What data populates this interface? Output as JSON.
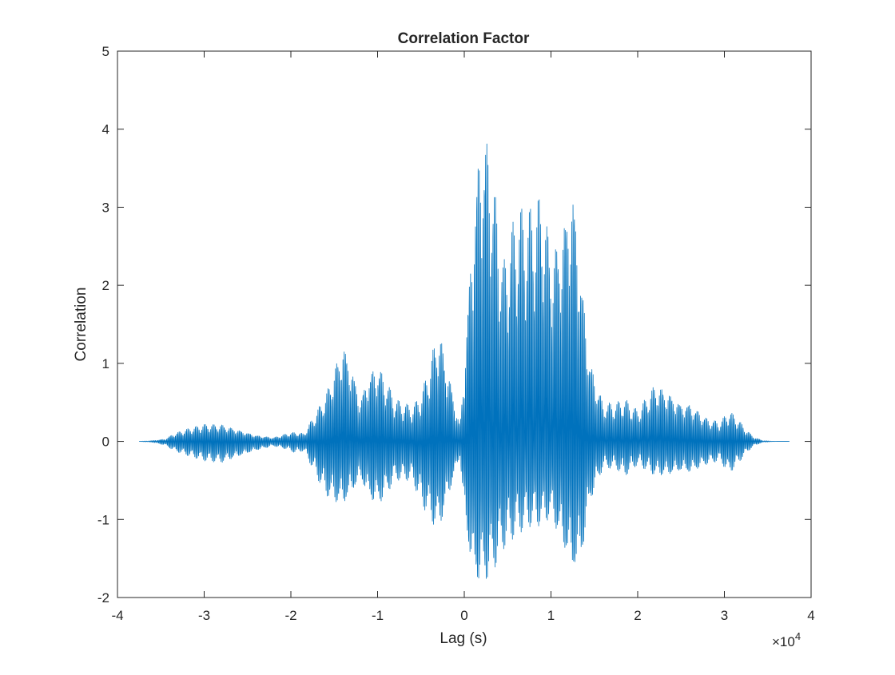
{
  "chart_data": {
    "type": "line",
    "title": "Correlation Factor",
    "xlabel": "Lag (s)",
    "ylabel": "Correlation",
    "x_exponent": {
      "prefix": "×10",
      "power": "4"
    },
    "xlim": [
      -4,
      4
    ],
    "ylim": [
      -2,
      5
    ],
    "x_ticks": [
      -4,
      -3,
      -2,
      -1,
      0,
      1,
      2,
      3,
      4
    ],
    "y_ticks": [
      -2,
      -1,
      0,
      1,
      2,
      3,
      4,
      5
    ],
    "x_tick_labels": [
      "-4",
      "-3",
      "-2",
      "-1",
      "0",
      "1",
      "2",
      "3",
      "4"
    ],
    "y_tick_labels": [
      "-2",
      "-1",
      "0",
      "1",
      "2",
      "3",
      "4",
      "5"
    ],
    "grid": false,
    "line_color": "#0072BD",
    "axis_color": "#262626",
    "series": [
      {
        "x": [
          -3.75,
          -3.6,
          -3.45,
          -3.35,
          -3.2,
          -3.0,
          -2.8,
          -2.6,
          -2.4,
          -2.2,
          -2.05,
          -1.95,
          -1.85,
          -1.75,
          -1.6,
          -1.5,
          -1.4,
          -1.3,
          -1.2,
          -1.1,
          -1.0,
          -0.9,
          -0.8,
          -0.6,
          -0.5,
          -0.4,
          -0.3,
          -0.2,
          -0.05,
          0.0,
          0.1,
          0.2,
          0.3,
          0.45,
          0.6,
          0.75,
          0.9,
          1.0,
          1.1,
          1.25,
          1.35,
          1.45,
          1.6,
          1.75,
          1.85,
          2.0,
          2.2,
          2.35,
          2.5,
          2.6,
          2.8,
          2.95,
          3.05,
          3.15,
          3.25,
          3.35,
          3.45,
          3.6,
          3.75
        ],
        "upper": [
          0.0,
          0.01,
          0.03,
          0.1,
          0.16,
          0.22,
          0.22,
          0.15,
          0.08,
          0.05,
          0.1,
          0.12,
          0.1,
          0.3,
          0.6,
          0.95,
          1.3,
          1.0,
          0.55,
          0.9,
          1.0,
          0.8,
          0.55,
          0.45,
          0.6,
          1.0,
          1.5,
          1.0,
          0.2,
          1.0,
          3.0,
          4.2,
          3.8,
          2.3,
          3.0,
          3.0,
          3.25,
          2.5,
          2.7,
          3.45,
          2.2,
          1.05,
          0.5,
          0.5,
          0.55,
          0.4,
          0.75,
          0.65,
          0.5,
          0.5,
          0.3,
          0.25,
          0.4,
          0.3,
          0.15,
          0.05,
          0.01,
          0.0,
          0.0
        ],
        "lower": [
          0.0,
          -0.01,
          -0.05,
          -0.12,
          -0.18,
          -0.25,
          -0.28,
          -0.2,
          -0.12,
          -0.06,
          -0.1,
          -0.15,
          -0.12,
          -0.35,
          -0.7,
          -0.8,
          -0.85,
          -0.7,
          -0.5,
          -0.75,
          -0.85,
          -0.7,
          -0.5,
          -0.5,
          -0.8,
          -1.0,
          -1.2,
          -0.8,
          -0.2,
          -1.0,
          -1.85,
          -1.9,
          -1.8,
          -1.4,
          -1.2,
          -1.1,
          -1.1,
          -1.0,
          -1.3,
          -1.75,
          -1.6,
          -0.8,
          -0.35,
          -0.35,
          -0.45,
          -0.3,
          -0.45,
          -0.45,
          -0.4,
          -0.42,
          -0.3,
          -0.25,
          -0.42,
          -0.3,
          -0.15,
          -0.05,
          -0.01,
          0.0,
          0.0
        ]
      }
    ]
  }
}
